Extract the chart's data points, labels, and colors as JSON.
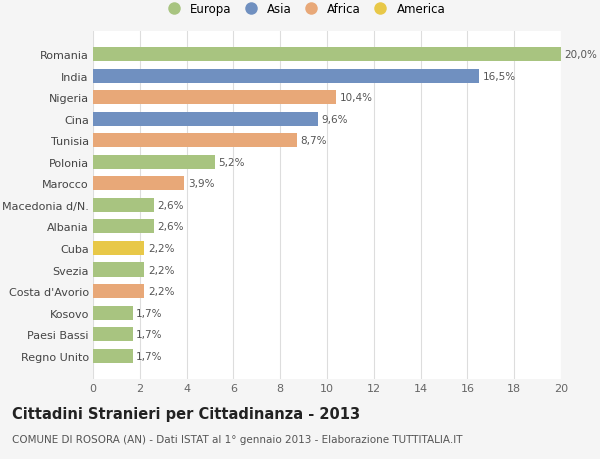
{
  "categories": [
    "Regno Unito",
    "Paesi Bassi",
    "Kosovo",
    "Costa d'Avorio",
    "Svezia",
    "Cuba",
    "Albania",
    "Macedonia d/N.",
    "Marocco",
    "Polonia",
    "Tunisia",
    "Cina",
    "Nigeria",
    "India",
    "Romania"
  ],
  "values": [
    1.7,
    1.7,
    1.7,
    2.2,
    2.2,
    2.2,
    2.6,
    2.6,
    3.9,
    5.2,
    8.7,
    9.6,
    10.4,
    16.5,
    20.0
  ],
  "continents": [
    "Europa",
    "Europa",
    "Europa",
    "Africa",
    "Europa",
    "America",
    "Europa",
    "Europa",
    "Africa",
    "Europa",
    "Africa",
    "Asia",
    "Africa",
    "Asia",
    "Europa"
  ],
  "labels": [
    "1,7%",
    "1,7%",
    "1,7%",
    "2,2%",
    "2,2%",
    "2,2%",
    "2,6%",
    "2,6%",
    "3,9%",
    "5,2%",
    "8,7%",
    "9,6%",
    "10,4%",
    "16,5%",
    "20,0%"
  ],
  "colors": {
    "Europa": "#a8c480",
    "Asia": "#7090c0",
    "Africa": "#e8a878",
    "America": "#e8c848"
  },
  "legend_order": [
    "Europa",
    "Asia",
    "Africa",
    "America"
  ],
  "title": "Cittadini Stranieri per Cittadinanza - 2013",
  "subtitle": "COMUNE DI ROSORA (AN) - Dati ISTAT al 1° gennaio 2013 - Elaborazione TUTTITALIA.IT",
  "xlim": [
    0,
    20
  ],
  "xticks": [
    0,
    2,
    4,
    6,
    8,
    10,
    12,
    14,
    16,
    18,
    20
  ],
  "background_color": "#f5f5f5",
  "bar_background": "#ffffff",
  "grid_color": "#dddddd",
  "title_fontsize": 10.5,
  "subtitle_fontsize": 7.5,
  "label_fontsize": 7.5,
  "tick_fontsize": 8,
  "legend_fontsize": 8.5
}
